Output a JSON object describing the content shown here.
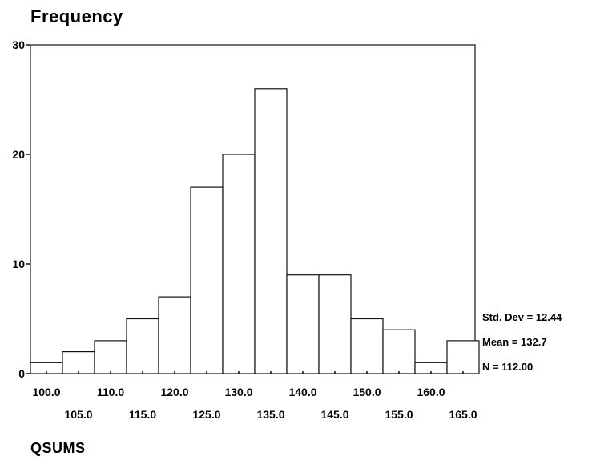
{
  "chart_data": {
    "type": "bar",
    "title": "Frequency",
    "xlabel": "QSUMS",
    "ylabel": "",
    "categories": [
      "100.0",
      "105.0",
      "110.0",
      "115.0",
      "120.0",
      "125.0",
      "130.0",
      "135.0",
      "140.0",
      "145.0",
      "150.0",
      "155.0",
      "160.0",
      "165.0"
    ],
    "values": [
      1,
      2,
      3,
      5,
      7,
      17,
      20,
      26,
      9,
      9,
      5,
      4,
      1,
      3
    ],
    "ylim": [
      0,
      30
    ],
    "yticks": [
      0,
      10,
      20,
      30
    ],
    "x_tick_labels_row1": [
      "100.0",
      "110.0",
      "120.0",
      "130.0",
      "140.0",
      "150.0",
      "160.0"
    ],
    "x_tick_labels_row2": [
      "105.0",
      "115.0",
      "125.0",
      "135.0",
      "145.0",
      "155.0",
      "165.0"
    ],
    "stats": [
      "Std. Dev = 12.44",
      "Mean = 132.7",
      "N = 112.00"
    ],
    "grid": false
  }
}
